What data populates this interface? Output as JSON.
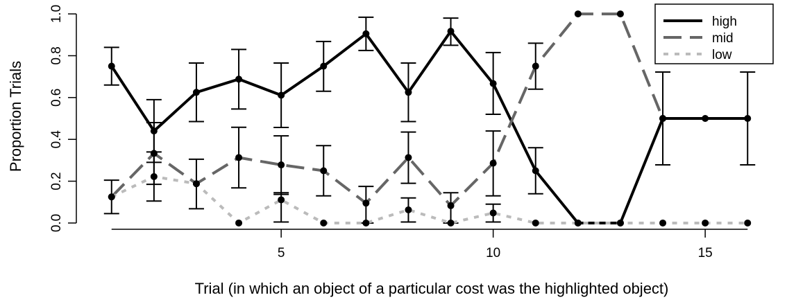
{
  "chart_data": {
    "type": "line",
    "xlabel": "Trial (in which an object of a particular cost was the highlighted object)",
    "ylabel": "Proportion Trials",
    "xlim": [
      0.3,
      16.7
    ],
    "ylim": [
      -0.02,
      1.04
    ],
    "x_ticks": [
      5,
      10,
      15
    ],
    "y_ticks": [
      0.0,
      0.2,
      0.4,
      0.6,
      0.8,
      1.0
    ],
    "x_tick_labels": [
      "5",
      "10",
      "15"
    ],
    "y_tick_labels": [
      "0.0",
      "0.2",
      "0.4",
      "0.6",
      "0.8",
      "1.0"
    ],
    "grid": false,
    "legend_position": "top-right",
    "x": [
      1,
      2,
      3,
      4,
      5,
      6,
      7,
      8,
      9,
      10,
      11,
      12,
      13,
      14,
      15,
      16
    ],
    "series": [
      {
        "name": "high",
        "color": "#000000",
        "dash": "solid",
        "values": [
          0.75,
          0.44,
          0.625,
          0.688,
          0.611,
          0.75,
          0.905,
          0.625,
          0.917,
          0.667,
          0.25,
          0.0,
          0.0,
          0.5,
          0.5,
          0.5
        ],
        "err_low": [
          0.66,
          0.29,
          0.485,
          0.545,
          0.457,
          0.63,
          0.825,
          0.485,
          0.85,
          0.52,
          0.14,
          null,
          null,
          0.278,
          null,
          0.278
        ],
        "err_high": [
          0.84,
          0.59,
          0.765,
          0.83,
          0.765,
          0.868,
          0.984,
          0.765,
          0.98,
          0.815,
          0.36,
          null,
          null,
          0.722,
          null,
          0.722
        ]
      },
      {
        "name": "mid",
        "color": "#666666",
        "dash": "long",
        "values": [
          0.125,
          0.333,
          0.188,
          0.313,
          0.278,
          0.25,
          0.095,
          0.313,
          0.083,
          0.286,
          0.75,
          1.0,
          1.0,
          0.5,
          null,
          null
        ],
        "err_low": [
          0.045,
          0.185,
          0.068,
          0.168,
          0.137,
          0.13,
          0.0,
          0.19,
          0.0,
          0.13,
          0.64,
          null,
          null,
          null,
          null,
          null
        ],
        "err_high": [
          0.205,
          0.48,
          0.305,
          0.458,
          0.417,
          0.37,
          0.175,
          0.435,
          0.145,
          0.44,
          0.86,
          null,
          null,
          null,
          null,
          null
        ]
      },
      {
        "name": "low",
        "color": "#bbbbbb",
        "dash": "short",
        "values": [
          0.125,
          0.222,
          0.188,
          0.0,
          0.111,
          0.0,
          0.0,
          0.063,
          0.0,
          0.048,
          0.0,
          0.0,
          0.0,
          0.0,
          0.0,
          0.0
        ],
        "err_low": [
          null,
          0.105,
          null,
          null,
          0.005,
          null,
          null,
          0.005,
          null,
          0.005,
          null,
          null,
          null,
          null,
          null,
          null
        ],
        "err_high": [
          null,
          0.34,
          null,
          null,
          0.145,
          null,
          null,
          0.12,
          null,
          0.09,
          null,
          null,
          null,
          null,
          null,
          null
        ]
      }
    ]
  }
}
